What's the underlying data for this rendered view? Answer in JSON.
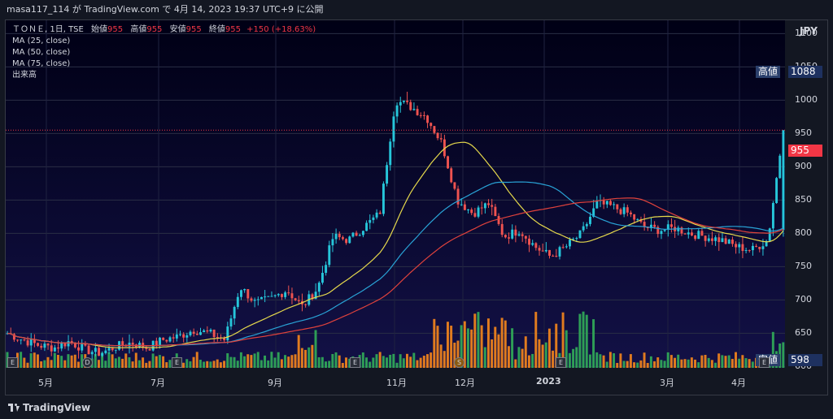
{
  "header": {
    "publish_line": "masa117_114 が TradingView.com で 4月 14, 2023 19:37 UTC+9 に公開"
  },
  "legend": {
    "symbol": "ＴＯＮＥ, 1日, TSE",
    "open_label": "始値",
    "open_value": "955",
    "high_label": "高値",
    "high_value": "955",
    "low_label": "安値",
    "low_value": "955",
    "close_label": "終値",
    "close_value": "955",
    "change": "+150 (+18.63%)",
    "ma25": "MA (25, close)",
    "ma50": "MA (50, close)",
    "ma75": "MA (75, close)",
    "volume": "出来高"
  },
  "axis": {
    "currency": "JPY",
    "y_ticks": [
      "1100",
      "1050",
      "1000",
      "950",
      "900",
      "850",
      "800",
      "750",
      "700",
      "650",
      "600"
    ],
    "x_ticks": [
      "5月",
      "7月",
      "9月",
      "11月",
      "12月",
      "2023",
      "3月",
      "4月"
    ]
  },
  "badges": {
    "high_label": "高値",
    "high_value": "1088",
    "last_value": "955",
    "low_label": "安値",
    "low_value": "598"
  },
  "events": [
    "E",
    "D",
    "E",
    "E",
    "S",
    "E",
    "E"
  ],
  "footer": {
    "brand": "TradingView"
  },
  "colors": {
    "up": "#26c6da",
    "down": "#ef5350",
    "ma25": "#e6d94c",
    "ma50": "#29a3d6",
    "ma75": "#e0423c",
    "vol_up": "#2e9e56",
    "vol_down": "#e07b1f"
  },
  "chart_data": {
    "type": "candlestick",
    "ylim": [
      598,
      1100
    ],
    "x": [
      "5月",
      "5月",
      "5月",
      "5月",
      "6月",
      "6月",
      "6月",
      "6月",
      "7月",
      "7月",
      "7月",
      "7月",
      "8月",
      "8月",
      "8月",
      "8月",
      "9月",
      "9月",
      "9月",
      "9月",
      "10月",
      "10月",
      "10月",
      "10月",
      "10月",
      "11月",
      "11月",
      "11月",
      "11月",
      "11月",
      "12月",
      "12月",
      "12月",
      "12月",
      "12月",
      "12月",
      "1月",
      "1月",
      "1月",
      "1月",
      "2月",
      "2月",
      "2月",
      "2月",
      "3月",
      "3月",
      "3月",
      "3月",
      "4月",
      "4月",
      "4月"
    ],
    "close": [
      650,
      640,
      632,
      628,
      638,
      625,
      620,
      630,
      636,
      628,
      640,
      645,
      655,
      650,
      640,
      720,
      695,
      702,
      715,
      690,
      718,
      795,
      790,
      810,
      830,
      1000,
      990,
      975,
      935,
      850,
      830,
      845,
      795,
      805,
      780,
      765,
      780,
      800,
      845,
      840,
      830,
      810,
      805,
      808,
      800,
      795,
      790,
      780,
      775,
      790,
      955
    ],
    "volume_note": "daily volume bars, peaks near 10月-11月 and 12月"
  }
}
